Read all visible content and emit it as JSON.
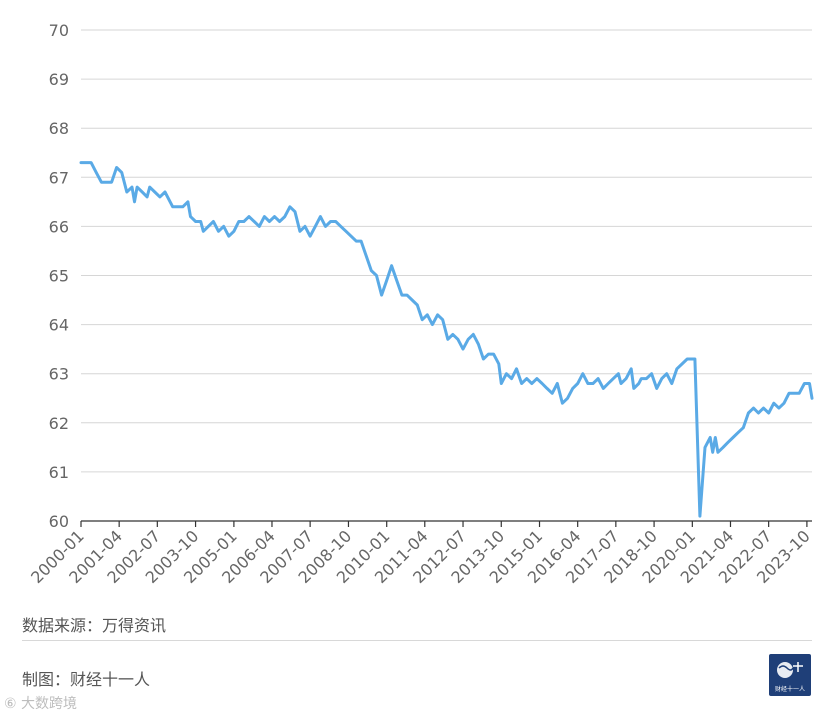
{
  "chart_data": {
    "type": "line",
    "title": "",
    "xlabel": "",
    "ylabel": "",
    "ylim": [
      60,
      70
    ],
    "yticks": [
      60,
      61,
      62,
      63,
      64,
      65,
      66,
      67,
      68,
      69,
      70
    ],
    "xticks": [
      "2000-01",
      "2001-04",
      "2002-07",
      "2003-10",
      "2005-01",
      "2006-04",
      "2007-07",
      "2008-10",
      "2010-01",
      "2011-04",
      "2012-07",
      "2013-10",
      "2015-01",
      "2016-04",
      "2017-07",
      "2018-10",
      "2020-01",
      "2021-04",
      "2022-07",
      "2023-10"
    ],
    "grid": true,
    "legend": "none",
    "series_color": "#5aaae6",
    "series": [
      {
        "points": [
          [
            "2000-01",
            67.3
          ],
          [
            "2000-05",
            67.3
          ],
          [
            "2000-07",
            67.1
          ],
          [
            "2000-09",
            66.9
          ],
          [
            "2000-11",
            66.9
          ],
          [
            "2001-01",
            66.9
          ],
          [
            "2001-03",
            67.2
          ],
          [
            "2001-05",
            67.1
          ],
          [
            "2001-07",
            66.7
          ],
          [
            "2001-09",
            66.8
          ],
          [
            "2001-10",
            66.5
          ],
          [
            "2001-11",
            66.8
          ],
          [
            "2002-01",
            66.7
          ],
          [
            "2002-03",
            66.6
          ],
          [
            "2002-04",
            66.8
          ],
          [
            "2002-06",
            66.7
          ],
          [
            "2002-08",
            66.6
          ],
          [
            "2002-10",
            66.7
          ],
          [
            "2002-12",
            66.5
          ],
          [
            "2003-01",
            66.4
          ],
          [
            "2003-03",
            66.4
          ],
          [
            "2003-05",
            66.4
          ],
          [
            "2003-07",
            66.5
          ],
          [
            "2003-08",
            66.2
          ],
          [
            "2003-10",
            66.1
          ],
          [
            "2003-12",
            66.1
          ],
          [
            "2004-01",
            65.9
          ],
          [
            "2004-03",
            66.0
          ],
          [
            "2004-05",
            66.1
          ],
          [
            "2004-07",
            65.9
          ],
          [
            "2004-09",
            66.0
          ],
          [
            "2004-11",
            65.8
          ],
          [
            "2005-01",
            65.9
          ],
          [
            "2005-03",
            66.1
          ],
          [
            "2005-05",
            66.1
          ],
          [
            "2005-07",
            66.2
          ],
          [
            "2005-09",
            66.1
          ],
          [
            "2005-11",
            66.0
          ],
          [
            "2006-01",
            66.2
          ],
          [
            "2006-03",
            66.1
          ],
          [
            "2006-05",
            66.2
          ],
          [
            "2006-07",
            66.1
          ],
          [
            "2006-09",
            66.2
          ],
          [
            "2006-11",
            66.4
          ],
          [
            "2007-01",
            66.3
          ],
          [
            "2007-03",
            65.9
          ],
          [
            "2007-05",
            66.0
          ],
          [
            "2007-07",
            65.8
          ],
          [
            "2007-09",
            66.0
          ],
          [
            "2007-11",
            66.2
          ],
          [
            "2008-01",
            66.0
          ],
          [
            "2008-03",
            66.1
          ],
          [
            "2008-05",
            66.1
          ],
          [
            "2008-07",
            66.0
          ],
          [
            "2008-09",
            65.9
          ],
          [
            "2008-11",
            65.8
          ],
          [
            "2009-01",
            65.7
          ],
          [
            "2009-03",
            65.7
          ],
          [
            "2009-05",
            65.4
          ],
          [
            "2009-07",
            65.1
          ],
          [
            "2009-09",
            65.0
          ],
          [
            "2009-11",
            64.6
          ],
          [
            "2010-01",
            64.9
          ],
          [
            "2010-03",
            65.2
          ],
          [
            "2010-05",
            64.9
          ],
          [
            "2010-07",
            64.6
          ],
          [
            "2010-09",
            64.6
          ],
          [
            "2010-11",
            64.5
          ],
          [
            "2011-01",
            64.4
          ],
          [
            "2011-03",
            64.1
          ],
          [
            "2011-05",
            64.2
          ],
          [
            "2011-07",
            64.0
          ],
          [
            "2011-09",
            64.2
          ],
          [
            "2011-11",
            64.1
          ],
          [
            "2012-01",
            63.7
          ],
          [
            "2012-03",
            63.8
          ],
          [
            "2012-05",
            63.7
          ],
          [
            "2012-07",
            63.5
          ],
          [
            "2012-09",
            63.7
          ],
          [
            "2012-11",
            63.8
          ],
          [
            "2013-01",
            63.6
          ],
          [
            "2013-03",
            63.3
          ],
          [
            "2013-05",
            63.4
          ],
          [
            "2013-07",
            63.4
          ],
          [
            "2013-09",
            63.2
          ],
          [
            "2013-10",
            62.8
          ],
          [
            "2013-12",
            63.0
          ],
          [
            "2014-02",
            62.9
          ],
          [
            "2014-04",
            63.1
          ],
          [
            "2014-06",
            62.8
          ],
          [
            "2014-08",
            62.9
          ],
          [
            "2014-10",
            62.8
          ],
          [
            "2014-12",
            62.9
          ],
          [
            "2015-02",
            62.8
          ],
          [
            "2015-04",
            62.7
          ],
          [
            "2015-06",
            62.6
          ],
          [
            "2015-08",
            62.8
          ],
          [
            "2015-10",
            62.4
          ],
          [
            "2015-12",
            62.5
          ],
          [
            "2016-02",
            62.7
          ],
          [
            "2016-04",
            62.8
          ],
          [
            "2016-06",
            63.0
          ],
          [
            "2016-08",
            62.8
          ],
          [
            "2016-10",
            62.8
          ],
          [
            "2016-12",
            62.9
          ],
          [
            "2017-02",
            62.7
          ],
          [
            "2017-04",
            62.8
          ],
          [
            "2017-06",
            62.9
          ],
          [
            "2017-08",
            63.0
          ],
          [
            "2017-09",
            62.8
          ],
          [
            "2017-11",
            62.9
          ],
          [
            "2018-01",
            63.1
          ],
          [
            "2018-02",
            62.7
          ],
          [
            "2018-04",
            62.8
          ],
          [
            "2018-05",
            62.9
          ],
          [
            "2018-07",
            62.9
          ],
          [
            "2018-09",
            63.0
          ],
          [
            "2018-11",
            62.7
          ],
          [
            "2019-01",
            62.9
          ],
          [
            "2019-03",
            63.0
          ],
          [
            "2019-05",
            62.8
          ],
          [
            "2019-07",
            63.1
          ],
          [
            "2019-09",
            63.2
          ],
          [
            "2019-11",
            63.3
          ],
          [
            "2020-01",
            63.3
          ],
          [
            "2020-02",
            63.3
          ],
          [
            "2020-04",
            60.1
          ],
          [
            "2020-06",
            61.5
          ],
          [
            "2020-08",
            61.7
          ],
          [
            "2020-09",
            61.4
          ],
          [
            "2020-10",
            61.7
          ],
          [
            "2020-11",
            61.4
          ],
          [
            "2021-01",
            61.5
          ],
          [
            "2021-03",
            61.6
          ],
          [
            "2021-05",
            61.7
          ],
          [
            "2021-07",
            61.8
          ],
          [
            "2021-09",
            61.9
          ],
          [
            "2021-11",
            62.2
          ],
          [
            "2022-01",
            62.3
          ],
          [
            "2022-03",
            62.2
          ],
          [
            "2022-05",
            62.3
          ],
          [
            "2022-07",
            62.2
          ],
          [
            "2022-09",
            62.4
          ],
          [
            "2022-11",
            62.3
          ],
          [
            "2023-01",
            62.4
          ],
          [
            "2023-03",
            62.6
          ],
          [
            "2023-05",
            62.6
          ],
          [
            "2023-07",
            62.6
          ],
          [
            "2023-09",
            62.8
          ],
          [
            "2023-11",
            62.8
          ],
          [
            "2023-12",
            62.5
          ]
        ]
      }
    ]
  },
  "footer": {
    "source": "数据来源：万得资讯",
    "made_by": "制图：财经十一人",
    "watermark": "⑥ 大数跨境",
    "logo_text": "财经十一人"
  }
}
